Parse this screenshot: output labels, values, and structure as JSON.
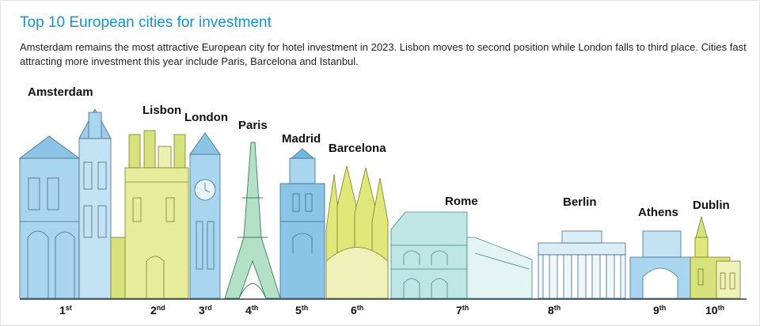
{
  "title": "Top 10 European cities for investment",
  "description": "Amsterdam remains the most attractive European city for hotel investment in 2023. Lisbon moves to second position while London falls to third place. Cities fast attracting more investment this year include Paris, Barcelona and Istanbul.",
  "cities": [
    {
      "name": "Amsterdam",
      "rank": "1",
      "suffix": "st"
    },
    {
      "name": "Lisbon",
      "rank": "2",
      "suffix": "nd"
    },
    {
      "name": "London",
      "rank": "3",
      "suffix": "rd"
    },
    {
      "name": "Paris",
      "rank": "4",
      "suffix": "th"
    },
    {
      "name": "Madrid",
      "rank": "5",
      "suffix": "th"
    },
    {
      "name": "Barcelona",
      "rank": "6",
      "suffix": "th"
    },
    {
      "name": "Rome",
      "rank": "7",
      "suffix": "th"
    },
    {
      "name": "Berlin",
      "rank": "8",
      "suffix": "th"
    },
    {
      "name": "Athens",
      "rank": "9",
      "suffix": "th"
    },
    {
      "name": "Dublin",
      "rank": "10",
      "suffix": "th"
    }
  ],
  "colors": {
    "title": "#1a8fd0",
    "blue_light": "#a9d5ee",
    "blue_mid": "#6fb8df",
    "teal_light": "#bfe6e4",
    "lime": "#d6e27c",
    "green": "#b2e1c7",
    "line": "#2c3e50"
  }
}
